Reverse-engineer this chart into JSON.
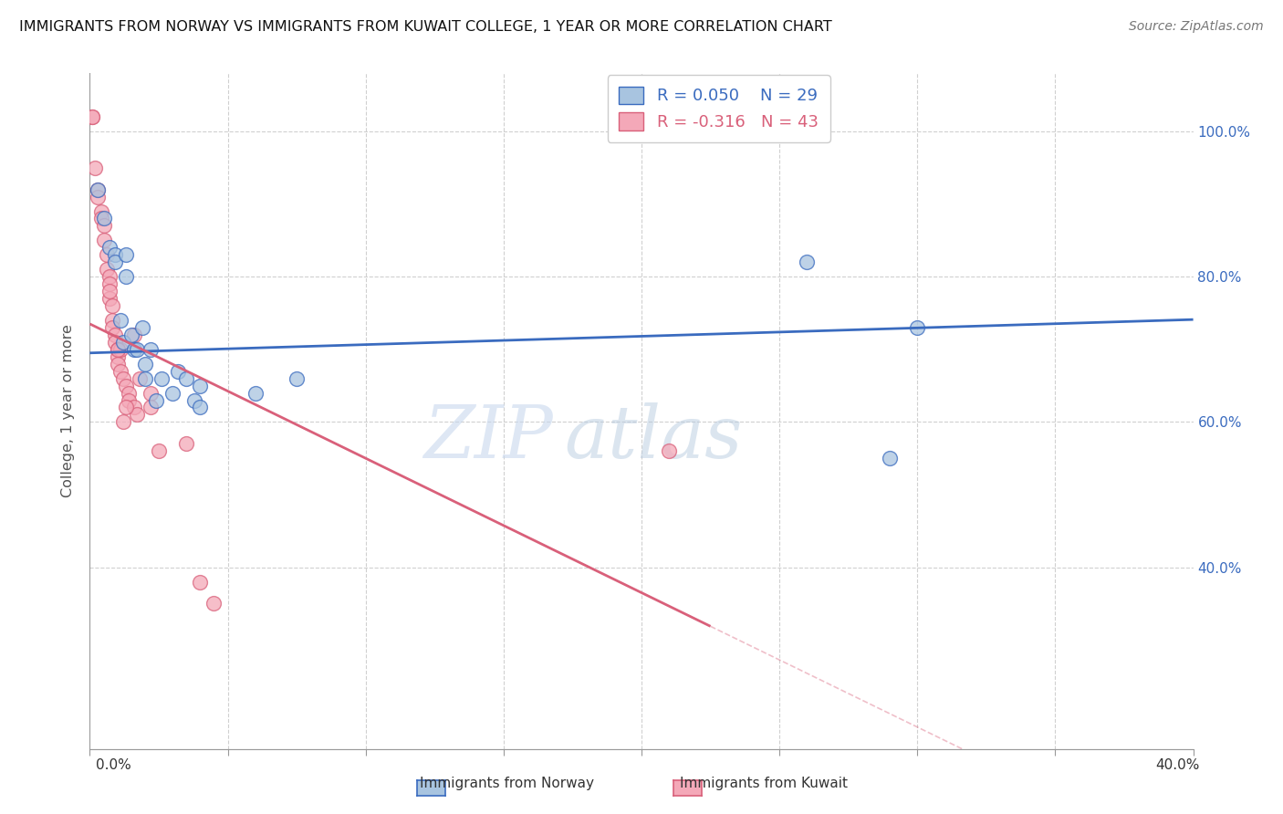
{
  "title": "IMMIGRANTS FROM NORWAY VS IMMIGRANTS FROM KUWAIT COLLEGE, 1 YEAR OR MORE CORRELATION CHART",
  "source": "Source: ZipAtlas.com",
  "ylabel": "College, 1 year or more",
  "ylabel_right_vals": [
    1.0,
    0.8,
    0.6,
    0.4
  ],
  "ylabel_right_labels": [
    "100.0%",
    "80.0%",
    "60.0%",
    "40.0%"
  ],
  "xlim": [
    0.0,
    0.4
  ],
  "ylim": [
    0.15,
    1.08
  ],
  "norway_R": 0.05,
  "norway_N": 29,
  "kuwait_R": -0.316,
  "kuwait_N": 43,
  "norway_color": "#a8c4e0",
  "kuwait_color": "#f4a8b8",
  "norway_line_color": "#3a6bbf",
  "kuwait_line_color": "#d9607a",
  "norway_x": [
    0.003,
    0.005,
    0.007,
    0.009,
    0.009,
    0.011,
    0.012,
    0.013,
    0.013,
    0.015,
    0.016,
    0.017,
    0.019,
    0.02,
    0.02,
    0.022,
    0.024,
    0.026,
    0.03,
    0.032,
    0.035,
    0.038,
    0.04,
    0.04,
    0.06,
    0.075,
    0.26,
    0.29,
    0.3
  ],
  "norway_y": [
    0.92,
    0.88,
    0.84,
    0.83,
    0.82,
    0.74,
    0.71,
    0.83,
    0.8,
    0.72,
    0.7,
    0.7,
    0.73,
    0.68,
    0.66,
    0.7,
    0.63,
    0.66,
    0.64,
    0.67,
    0.66,
    0.63,
    0.62,
    0.65,
    0.64,
    0.66,
    0.82,
    0.55,
    0.73
  ],
  "kuwait_x": [
    0.001,
    0.001,
    0.002,
    0.003,
    0.003,
    0.004,
    0.004,
    0.005,
    0.005,
    0.006,
    0.006,
    0.007,
    0.007,
    0.007,
    0.008,
    0.008,
    0.008,
    0.009,
    0.009,
    0.01,
    0.01,
    0.01,
    0.011,
    0.011,
    0.012,
    0.013,
    0.014,
    0.014,
    0.016,
    0.017,
    0.018,
    0.022,
    0.022,
    0.025,
    0.035,
    0.04,
    0.045,
    0.016,
    0.013,
    0.012,
    0.01,
    0.007,
    0.21
  ],
  "kuwait_y": [
    1.02,
    1.02,
    0.95,
    0.92,
    0.91,
    0.89,
    0.88,
    0.87,
    0.85,
    0.83,
    0.81,
    0.8,
    0.79,
    0.77,
    0.76,
    0.74,
    0.73,
    0.72,
    0.71,
    0.7,
    0.69,
    0.68,
    0.7,
    0.67,
    0.66,
    0.65,
    0.64,
    0.63,
    0.62,
    0.61,
    0.66,
    0.64,
    0.62,
    0.56,
    0.57,
    0.38,
    0.35,
    0.72,
    0.62,
    0.6,
    0.7,
    0.78,
    0.56
  ],
  "watermark_zip": "ZIP",
  "watermark_atlas": "atlas",
  "grid_color": "#d0d0d0",
  "background_color": "#ffffff",
  "norway_line_intercept": 0.695,
  "norway_line_slope": 0.115,
  "kuwait_line_intercept": 0.735,
  "kuwait_line_slope": -1.85
}
